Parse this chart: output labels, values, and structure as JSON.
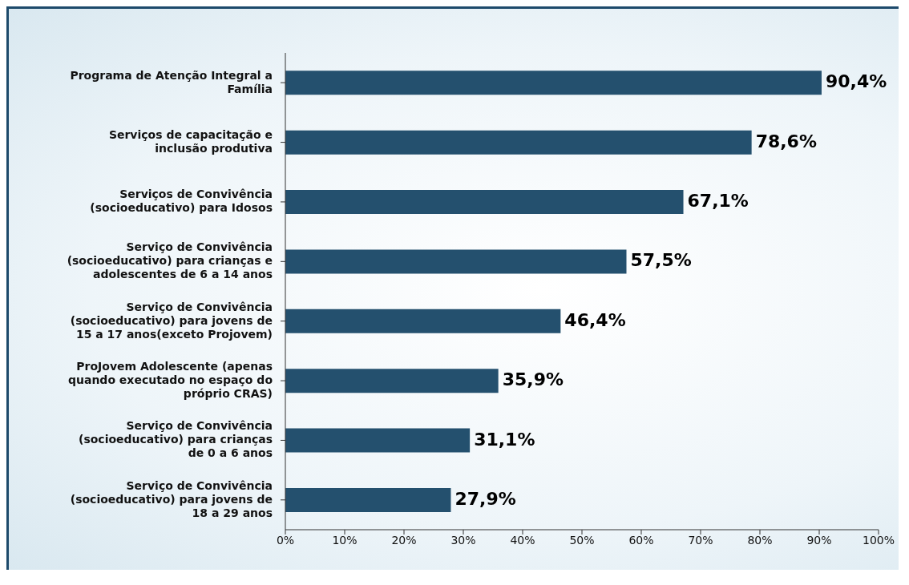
{
  "chart_data": {
    "type": "bar",
    "orientation": "horizontal",
    "categories": [
      "Programa de Atenção Integral a Família",
      "Serviços de capacitação e inclusão produtiva",
      "Serviços de Convivência (socioeducativo) para Idosos",
      "Serviço de Convivência (socioeducativo) para crianças e adolescentes de 6 a 14 anos",
      "Serviço de Convivência (socioeducativo) para jovens de 15 a 17 anos(exceto Projovem)",
      "ProJovem Adolescente (apenas quando executado no espaço do próprio CRAS)",
      "Serviço de Convivência (socioeducativo) para crianças de 0 a 6 anos",
      "Serviço de Convivência (socioeducativo) para jovens de 18 a 29 anos"
    ],
    "values": [
      90.4,
      78.6,
      67.1,
      57.5,
      46.4,
      35.9,
      31.1,
      27.9
    ],
    "value_labels": [
      "90,4%",
      "78,6%",
      "67,1%",
      "57,5%",
      "46,4%",
      "35,9%",
      "31,1%",
      "27,9%"
    ],
    "color": "#24506e",
    "xlim": [
      0,
      100
    ],
    "xticks": [
      {
        "value": 0,
        "label": "0%"
      },
      {
        "value": 10,
        "label": "10%"
      },
      {
        "value": 20,
        "label": "20%"
      },
      {
        "value": 30,
        "label": "30%"
      },
      {
        "value": 40,
        "label": "40%"
      },
      {
        "value": 50,
        "label": "50%"
      },
      {
        "value": 60,
        "label": "60%"
      },
      {
        "value": 70,
        "label": "70%"
      },
      {
        "value": 80,
        "label": "80%"
      },
      {
        "value": 90,
        "label": "90%"
      },
      {
        "value": 100,
        "label": "100%"
      }
    ],
    "grid": false,
    "legend": false
  }
}
